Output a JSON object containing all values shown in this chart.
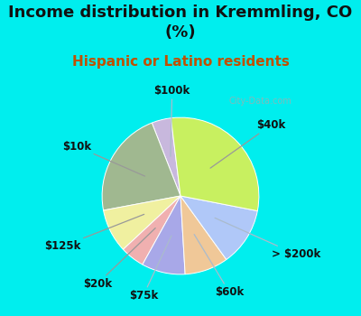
{
  "title": "Income distribution in Kremmling, CO\n(%)",
  "subtitle": "Hispanic or Latino residents",
  "title_color": "#111111",
  "subtitle_color": "#c05000",
  "bg_color": "#00eeee",
  "chart_bg_color": "#e0f0e8",
  "watermark": "City-Data.com",
  "slices": [
    {
      "label": "$100k",
      "value": 4,
      "color": "#c8b8dd"
    },
    {
      "label": "$10k",
      "value": 22,
      "color": "#a0b890"
    },
    {
      "label": "$125k",
      "value": 9,
      "color": "#f0f0a0"
    },
    {
      "label": "$20k",
      "value": 5,
      "color": "#f0b0b0"
    },
    {
      "label": "$75k",
      "value": 9,
      "color": "#a8a8e8"
    },
    {
      "label": "$60k",
      "value": 9,
      "color": "#f0c898"
    },
    {
      "> $200k": 1,
      "label": "> $200k",
      "value": 12,
      "color": "#b0c8f8"
    },
    {
      "label": "$40k",
      "value": 30,
      "color": "#c8f060"
    }
  ],
  "startangle": 97,
  "label_fontsize": 8.5,
  "title_fontsize": 13,
  "subtitle_fontsize": 11
}
